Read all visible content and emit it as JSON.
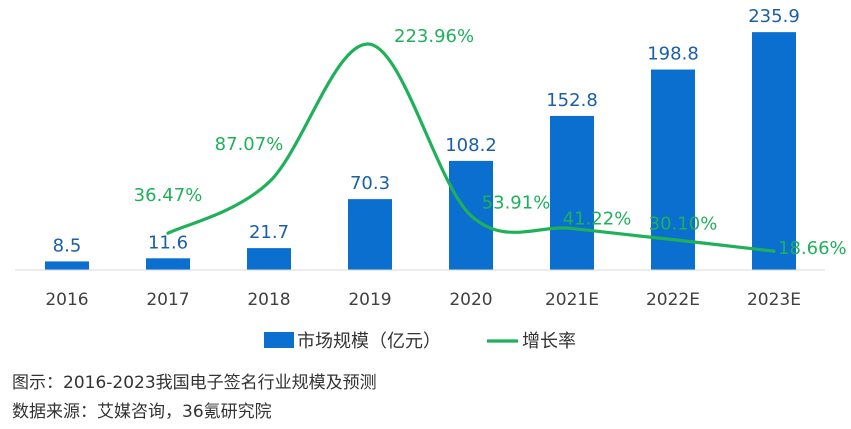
{
  "chart_data": {
    "type": "bar",
    "categories": [
      "2016",
      "2017",
      "2018",
      "2019",
      "2020",
      "2021E",
      "2022E",
      "2023E"
    ],
    "series": [
      {
        "name": "市场规模（亿元）",
        "type": "bar",
        "color": "#0b6fd0",
        "values": [
          8.5,
          11.6,
          21.7,
          70.3,
          108.2,
          152.8,
          198.8,
          235.9
        ],
        "labels": [
          "8.5",
          "11.6",
          "21.7",
          "70.3",
          "108.2",
          "152.8",
          "198.8",
          "235.9"
        ]
      },
      {
        "name": "增长率",
        "type": "line",
        "color": "#1fb15a",
        "values": [
          null,
          36.47,
          87.07,
          223.96,
          53.91,
          41.22,
          30.1,
          18.66
        ],
        "labels": [
          null,
          "36.47%",
          "87.07%",
          "223.96%",
          "53.91%",
          "41.22%",
          "30.10%",
          "18.66%"
        ]
      }
    ],
    "title": "",
    "xlabel": "",
    "ylabel": "",
    "ylim": [
      0,
      240
    ],
    "y2lim": [
      0,
      240
    ],
    "grid": false,
    "legend": "bottom-center"
  },
  "caption": {
    "figure": "图示：2016-2023我国电子签名行业规模及预测",
    "source": "数据来源：艾媒咨询，36氪研究院"
  }
}
